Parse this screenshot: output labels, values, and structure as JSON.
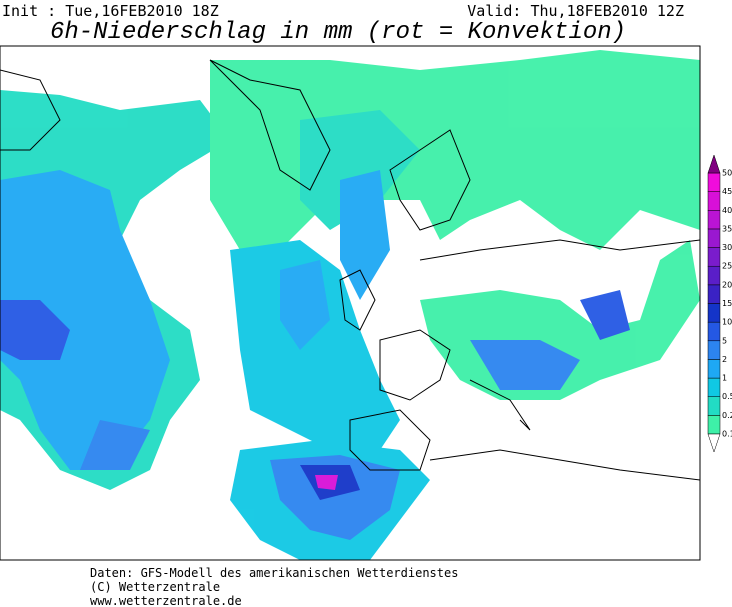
{
  "header": {
    "init": "Init : Tue,16FEB2010 18Z",
    "valid": "Valid: Thu,18FEB2010 12Z",
    "title": "6h-Niederschlag in mm (rot = Konvektion)"
  },
  "legend": {
    "levels": [
      0.1,
      0.2,
      0.5,
      1,
      2,
      5,
      10,
      15,
      20,
      25,
      30,
      35,
      40,
      45,
      50
    ],
    "colors": [
      "#3ef0a8",
      "#22dcc4",
      "#10c8e4",
      "#1ea8f4",
      "#2c84f0",
      "#2458e4",
      "#1434c8",
      "#3a22c4",
      "#5a1ec8",
      "#7a1ccc",
      "#9a18d0",
      "#ba14d4",
      "#d810d8",
      "#f00cdc"
    ]
  },
  "footer": {
    "lines": [
      "Daten: GFS-Modell des amerikanischen Wetterdienstes",
      "(C) Wetterzentrale",
      "www.wetterzentrale.de"
    ]
  }
}
